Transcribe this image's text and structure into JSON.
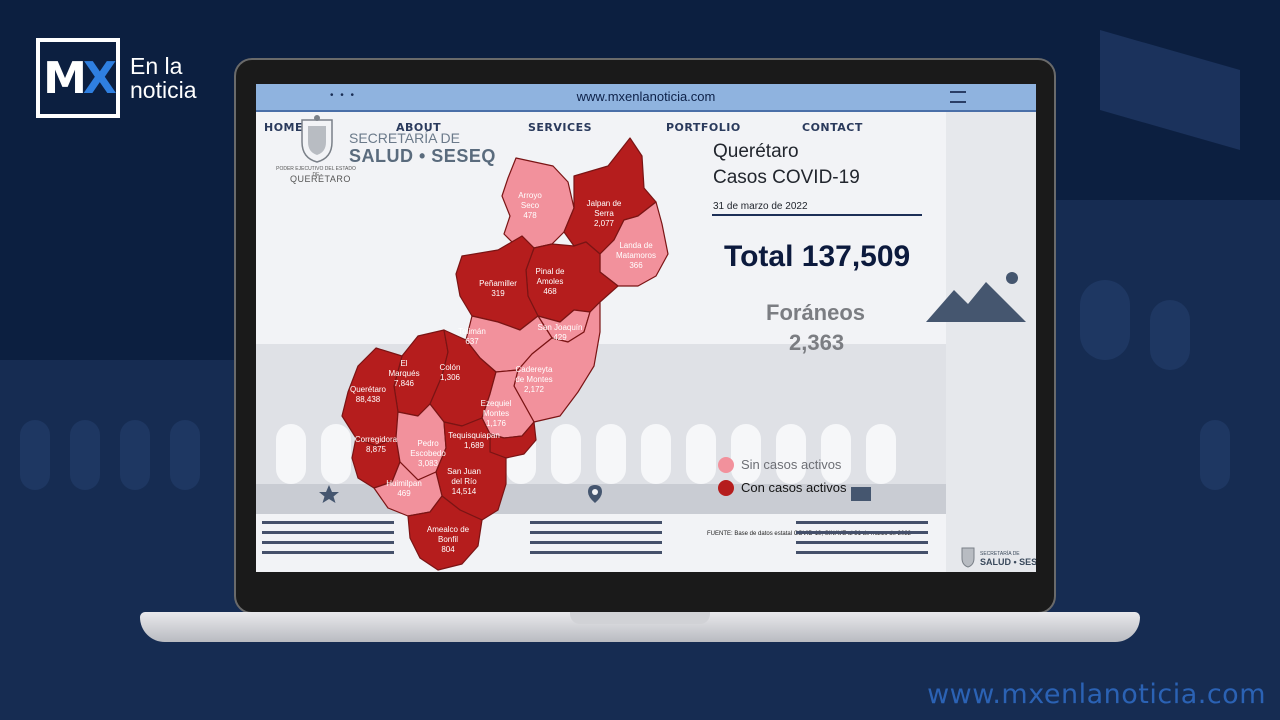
{
  "brand": {
    "logo_mark": "MX",
    "logo_text_line1": "En la",
    "logo_text_line2": "noticia",
    "watermark_url": "www.mxenlanoticia.com"
  },
  "browser": {
    "url": "www.mxenlanoticia.com",
    "dots": "• • •",
    "nav": [
      "HOME",
      "ABOUT",
      "SERVICES",
      "PORTFOLIO",
      "CONTACT"
    ]
  },
  "header": {
    "seal_caption": "PODER EJECUTIVO DEL ESTADO DE",
    "seal_city": "QUERÉTARO",
    "secretaria_line1": "SECRETARÍA DE",
    "secretaria_line2": "SALUD • SESEQ"
  },
  "report": {
    "title_line1": "Querétaro",
    "title_line2": "Casos COVID-19",
    "date": "31 de marzo de 2022",
    "total": "Total 137,509",
    "foraneos_label": "Foráneos",
    "foraneos_value": "2,363",
    "source": "FUENTE: Base de datos estatal COVID-19, SINAVE al 31 de marzo de 2022"
  },
  "legend": [
    {
      "label": "Sin casos activos",
      "color": "#f2919c"
    },
    {
      "label": "Con casos activos",
      "color": "#b51d1d"
    }
  ],
  "municipalities": [
    {
      "name": "Arroyo Seco",
      "cases": "478",
      "active": false
    },
    {
      "name": "Jalpan de Serra",
      "cases": "2,077",
      "active": true
    },
    {
      "name": "Landa de Matamoros",
      "cases": "366",
      "active": false
    },
    {
      "name": "Pinal de Amoles",
      "cases": "468",
      "active": true
    },
    {
      "name": "Peñamiller",
      "cases": "319",
      "active": true
    },
    {
      "name": "San Joaquín",
      "cases": "429",
      "active": false
    },
    {
      "name": "Tolimán",
      "cases": "637",
      "active": false
    },
    {
      "name": "Cadereyta de Montes",
      "cases": "2,172",
      "active": false
    },
    {
      "name": "El Marqués",
      "cases": "7,846",
      "active": true
    },
    {
      "name": "Colón",
      "cases": "1,306",
      "active": true
    },
    {
      "name": "Querétaro",
      "cases": "88,438",
      "active": true
    },
    {
      "name": "Ezequiel Montes",
      "cases": "1,176",
      "active": false
    },
    {
      "name": "Tequisquiapan",
      "cases": "1,689",
      "active": true
    },
    {
      "name": "Corregidora",
      "cases": "8,875",
      "active": true
    },
    {
      "name": "Pedro Escobedo",
      "cases": "3,083",
      "active": false
    },
    {
      "name": "San Juan del Río",
      "cases": "14,514",
      "active": true
    },
    {
      "name": "Huimilpan",
      "cases": "469",
      "active": false
    },
    {
      "name": "Amealco de Bonfil",
      "cases": "804",
      "active": true
    }
  ],
  "map_labels": {
    "arroyo": [
      "Arroyo",
      "Seco",
      "478"
    ],
    "jalpan": [
      "Jalpan de",
      "Serra",
      "2,077"
    ],
    "landa": [
      "Landa de",
      "Matamoros",
      "366"
    ],
    "pinal": [
      "Pinal de",
      "Amoles",
      "468"
    ],
    "penamiller": [
      "Peñamiller",
      "319"
    ],
    "sanjoaquin": [
      "San Joaquín",
      "429"
    ],
    "toliman": [
      "Tolimán",
      "637"
    ],
    "cadereyta": [
      "Cadereyta",
      "de Montes",
      "2,172"
    ],
    "marques": [
      "El",
      "Marqués",
      "7,846"
    ],
    "colon": [
      "Colón",
      "1,306"
    ],
    "queretaro": [
      "Querétaro",
      "88,438"
    ],
    "ezequiel": [
      "Ezequiel",
      "Montes",
      "1,176"
    ],
    "tequis": [
      "Tequisquiapan",
      "1,689"
    ],
    "corregidora": [
      "Corregidora",
      "8,875"
    ],
    "pedro": [
      "Pedro",
      "Escobedo",
      "3,083"
    ],
    "sanjuan": [
      "San Juan",
      "del Río",
      "14,514"
    ],
    "huimilpan": [
      "Huimilpan",
      "469"
    ],
    "amealco": [
      "Amealco de",
      "Bonfil",
      "804"
    ]
  },
  "colors": {
    "active": "#b51d1d",
    "inactive": "#f2919c",
    "navy": "#0c1f40"
  }
}
